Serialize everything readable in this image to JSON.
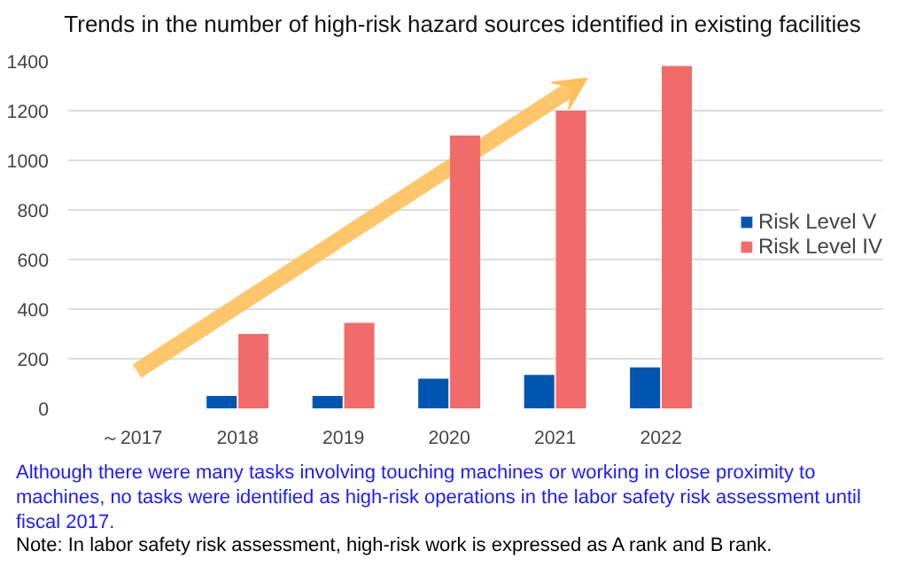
{
  "chart_data": {
    "type": "bar",
    "title": "Trends in the number of high-risk hazard sources identified in existing facilities",
    "categories": [
      "～2017",
      "2018",
      "2019",
      "2020",
      "2021",
      "2022"
    ],
    "series": [
      {
        "name": "Risk Level V",
        "color": "#0055b0",
        "values": [
          0,
          50,
          50,
          120,
          135,
          165
        ]
      },
      {
        "name": "Risk Level IV",
        "color": "#f26b6b",
        "values": [
          0,
          300,
          345,
          1100,
          1200,
          1380
        ]
      }
    ],
    "ylim": [
      0,
      1400
    ],
    "yticks": [
      0,
      200,
      400,
      600,
      800,
      1000,
      1200,
      1400
    ],
    "grid": "y",
    "legend": "right",
    "annotations": [
      "Although there were many tasks involving touching machines or working in close proximity to machines, no tasks were identified as high-risk operations in the labor safety risk assessment until fiscal 2017.",
      "Note: In labor safety risk assessment, high-risk work is expressed as A rank and B rank."
    ]
  }
}
